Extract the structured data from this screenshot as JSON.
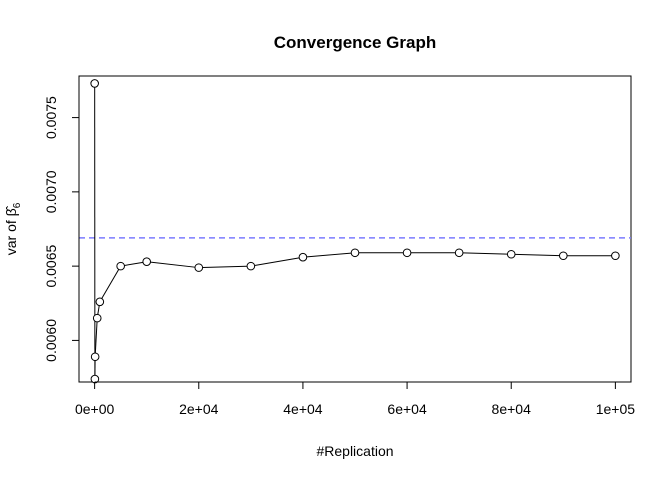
{
  "chart_data": {
    "type": "line",
    "title": "Convergence Graph",
    "xlabel": "#Replication",
    "ylabel_prefix": "var of ",
    "ylabel_symbol": "β̂",
    "ylabel_subscript": "6",
    "xlim": [
      -3000,
      103000
    ],
    "ylim": [
      0.00572,
      0.00778
    ],
    "x_ticks": [
      0,
      20000,
      40000,
      60000,
      80000,
      100000
    ],
    "x_tick_labels": [
      "0e+00",
      "2e+04",
      "4e+04",
      "6e+04",
      "8e+04",
      "1e+05"
    ],
    "y_ticks": [
      0.006,
      0.0065,
      0.007,
      0.0075
    ],
    "y_tick_labels": [
      "0.0060",
      "0.0065",
      "0.0070",
      "0.0075"
    ],
    "reference_line": {
      "y": 0.00669,
      "style": "dashed",
      "color": "#7b7bff"
    },
    "series": [
      {
        "marker": "open-circle",
        "color": "#000000",
        "x": [
          10,
          50,
          100,
          500,
          1000,
          5000,
          10000,
          20000,
          30000,
          40000,
          50000,
          60000,
          70000,
          80000,
          90000,
          100000
        ],
        "y": [
          0.00773,
          0.00574,
          0.00589,
          0.00615,
          0.00626,
          0.0065,
          0.00653,
          0.00649,
          0.0065,
          0.00656,
          0.00659,
          0.00659,
          0.00659,
          0.00658,
          0.00657,
          0.00657
        ]
      }
    ]
  }
}
